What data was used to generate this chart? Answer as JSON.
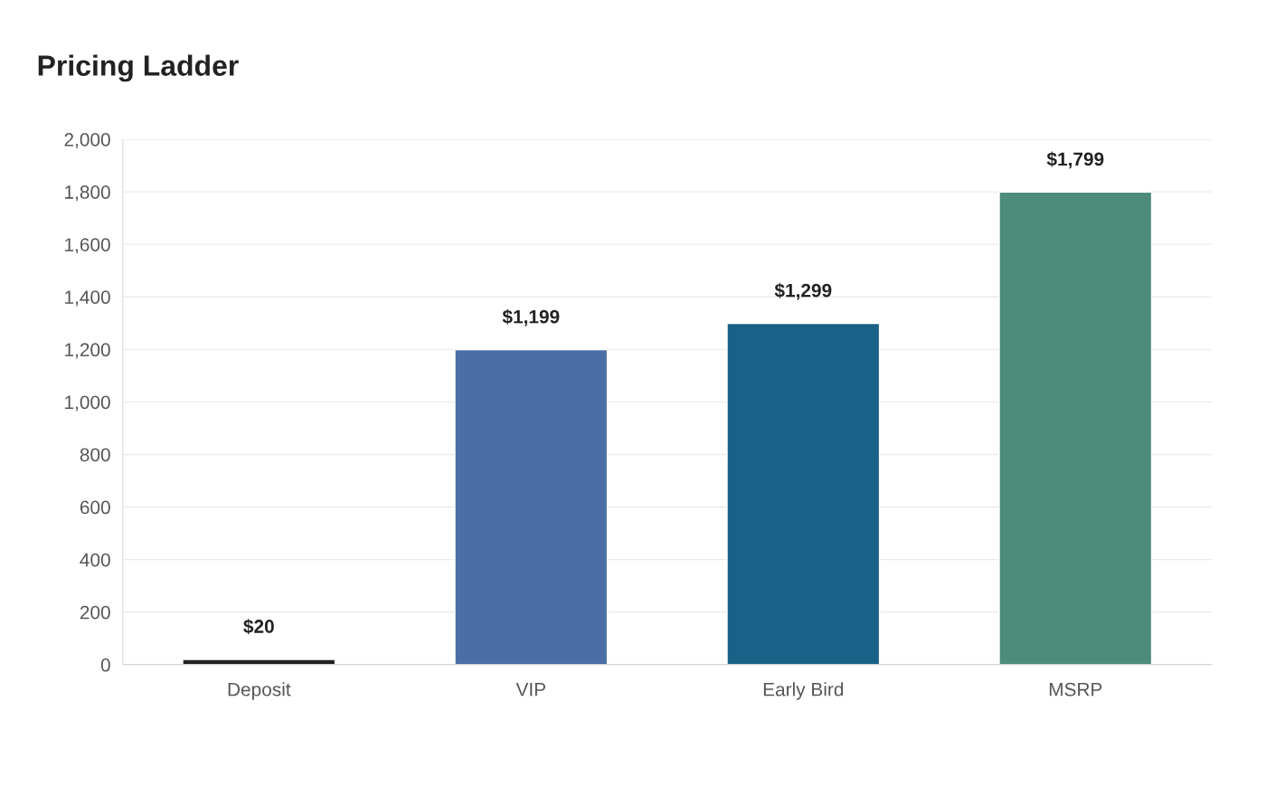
{
  "chart_data": {
    "type": "bar",
    "title": "Pricing Ladder",
    "categories": [
      "Deposit",
      "VIP",
      "Early Bird",
      "MSRP"
    ],
    "values": [
      20,
      1199,
      1299,
      1799
    ],
    "colors": [
      "#222222",
      "#4a6fa5",
      "#1a6187",
      "#4d8c7a"
    ],
    "value_labels": [
      "$20",
      "$1,199",
      "$1,299",
      "$1,799"
    ],
    "ylim": [
      0,
      2000
    ],
    "yticks": [
      0,
      200,
      400,
      600,
      800,
      {
        "value": 1000,
        "label": "1,000"
      },
      {
        "value": 1200,
        "label": "1,200"
      },
      {
        "value": 1400,
        "label": "1,400"
      },
      {
        "value": 1600,
        "label": "1,600"
      },
      {
        "value": 1800,
        "label": "1,800"
      },
      {
        "value": 2000,
        "label": "2,000"
      }
    ],
    "grid": "y"
  }
}
